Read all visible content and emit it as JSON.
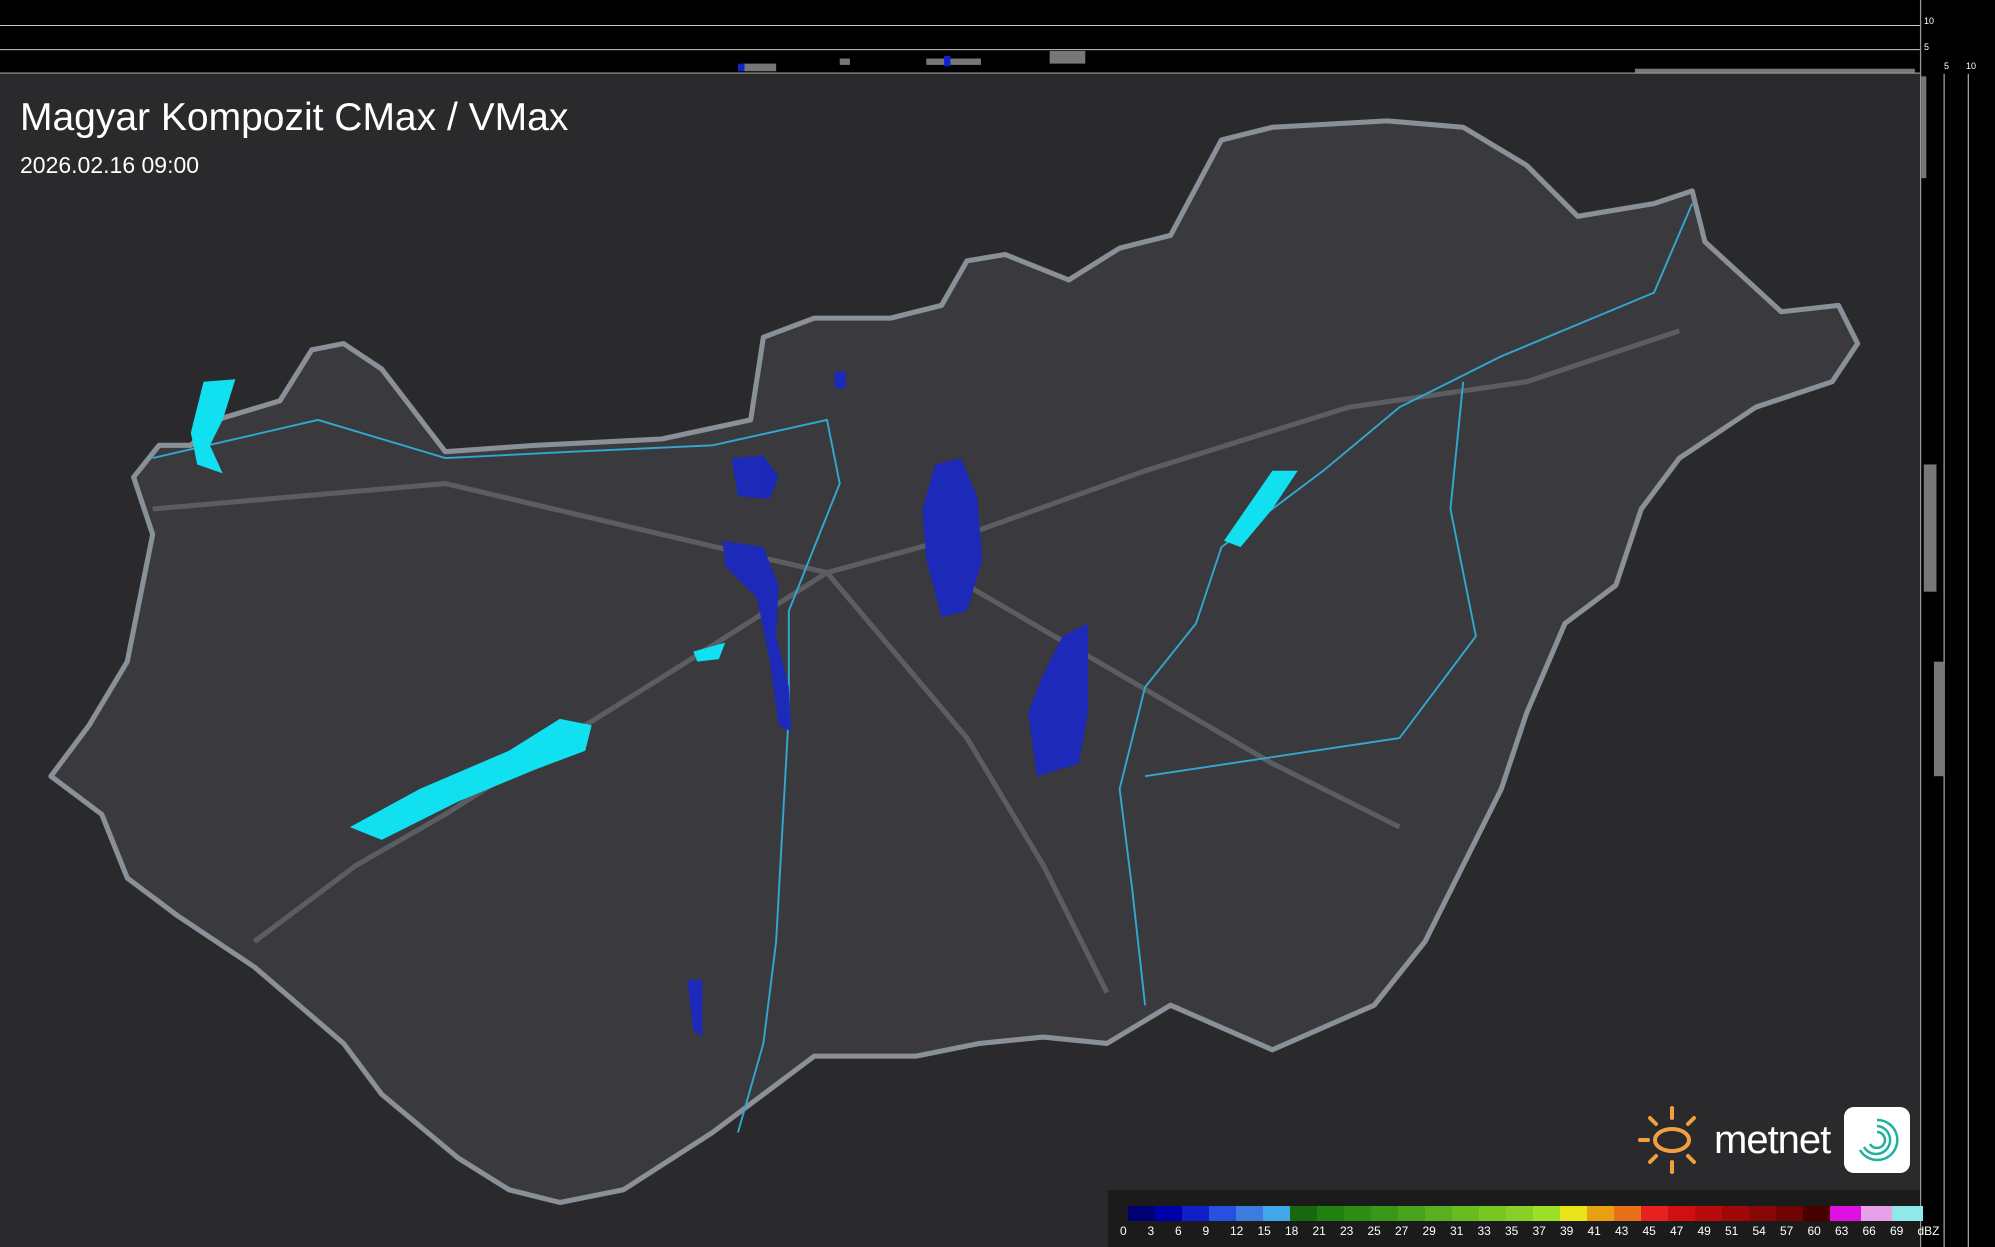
{
  "header": {
    "title": "Magyar Kompozit CMax / VMax",
    "timestamp": "2026.02.16 09:00"
  },
  "profile_scale": {
    "top_ticks": [
      "10",
      "5"
    ],
    "right_ticks": [
      "5",
      "10"
    ]
  },
  "legend": {
    "unit": "dBZ",
    "labels": [
      "0",
      "3",
      "6",
      "9",
      "12",
      "15",
      "18",
      "21",
      "23",
      "25",
      "27",
      "29",
      "31",
      "33",
      "35",
      "37",
      "39",
      "41",
      "43",
      "45",
      "47",
      "49",
      "51",
      "54",
      "57",
      "60",
      "63",
      "66",
      "69"
    ],
    "colors": [
      "#000070",
      "#0000a8",
      "#1020c8",
      "#2850e0",
      "#3c7ce0",
      "#40a8e8",
      "#186810",
      "#208010",
      "#2c8c14",
      "#3a9818",
      "#48a41c",
      "#58b020",
      "#68bc20",
      "#78c824",
      "#88d028",
      "#9ce028",
      "#e8e418",
      "#e8a010",
      "#e87018",
      "#e82020",
      "#d01010",
      "#b80c0c",
      "#a00808",
      "#880808",
      "#700404",
      "#480000",
      "#e010e0",
      "#e8a0e8",
      "#90e8e8"
    ]
  },
  "logo": {
    "brand": "metnet",
    "sun_color": "#f0a040",
    "swirl_color": "#20b0a0"
  },
  "colors": {
    "precip_light": "#2030c8",
    "lakes": "#10e0f0",
    "rivers": "#30a8d0",
    "border": "#8a9098"
  }
}
